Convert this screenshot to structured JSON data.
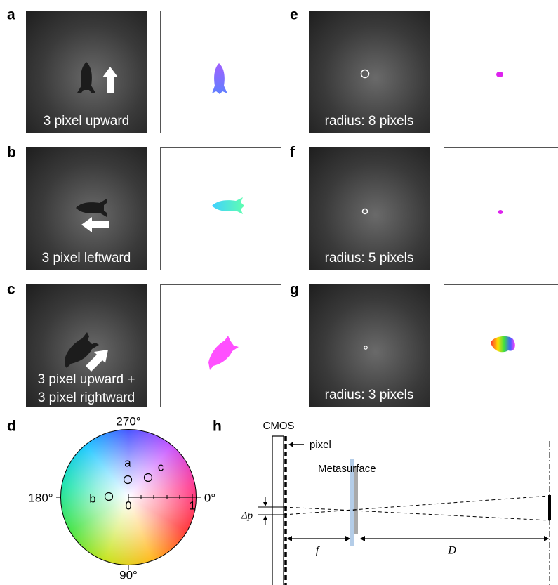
{
  "panels": [
    {
      "letter": "a",
      "caption": [
        "3 pixel upward"
      ]
    },
    {
      "letter": "b",
      "caption": [
        "3 pixel leftward"
      ]
    },
    {
      "letter": "c",
      "caption": [
        "3 pixel upward +",
        "3 pixel rightward"
      ]
    },
    {
      "letter": "e",
      "caption": [
        "radius: 8 pixels"
      ]
    },
    {
      "letter": "f",
      "caption": [
        "radius: 5 pixels"
      ]
    },
    {
      "letter": "g",
      "caption": [
        "radius: 3 pixels"
      ]
    }
  ],
  "wheel": {
    "letter": "d",
    "angles": [
      "270°",
      "180°",
      "0°",
      "90°"
    ],
    "points": [
      "a",
      "b",
      "c"
    ],
    "axis": [
      "0",
      "1"
    ]
  },
  "diagram": {
    "letter": "h",
    "cmos": "CMOS",
    "pixel": "pixel",
    "metasurface": "Metasurface",
    "dp": "Δp",
    "f": "f",
    "D": "D"
  }
}
